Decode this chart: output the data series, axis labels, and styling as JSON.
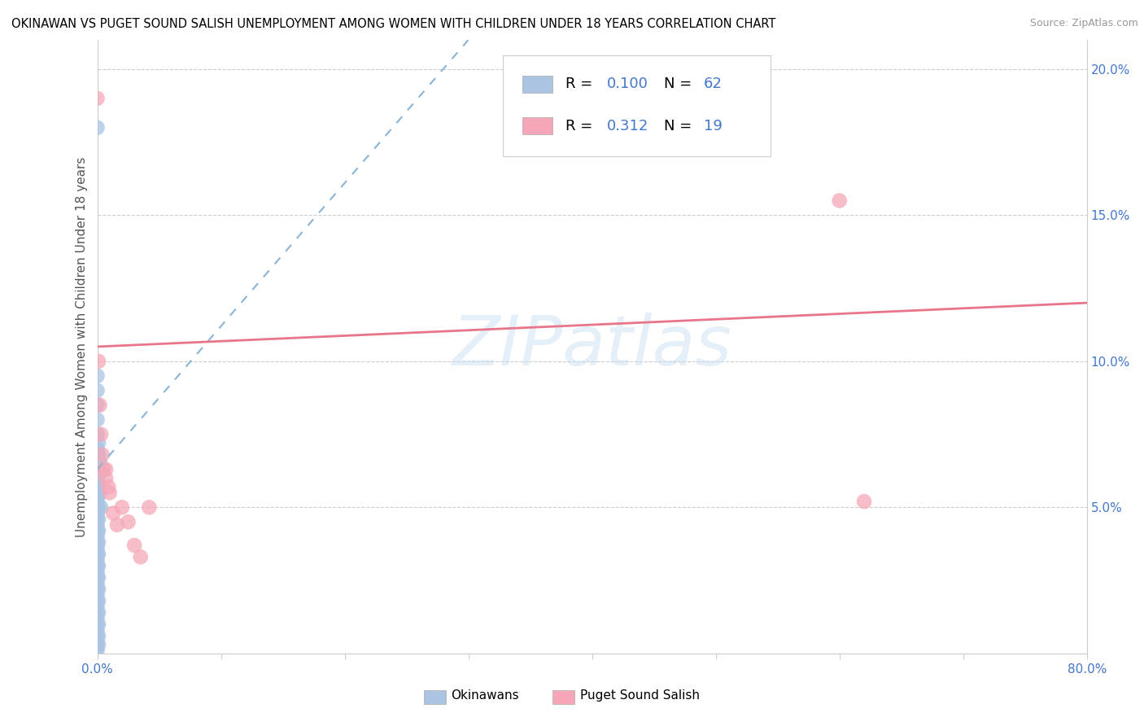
{
  "title": "OKINAWAN VS PUGET SOUND SALISH UNEMPLOYMENT AMONG WOMEN WITH CHILDREN UNDER 18 YEARS CORRELATION CHART",
  "source": "Source: ZipAtlas.com",
  "ylabel": "Unemployment Among Women with Children Under 18 years",
  "xlim": [
    0.0,
    0.8
  ],
  "ylim": [
    0.0,
    0.21
  ],
  "xticks": [
    0.0,
    0.1,
    0.2,
    0.3,
    0.4,
    0.5,
    0.6,
    0.7,
    0.8
  ],
  "xticklabels": [
    "0.0%",
    "",
    "",
    "",
    "",
    "",
    "",
    "",
    "80.0%"
  ],
  "yticks_left": [
    0.0,
    0.05,
    0.1,
    0.15,
    0.2
  ],
  "yticklabels_left": [
    "",
    "",
    "",
    "",
    ""
  ],
  "yticks_right": [
    0.05,
    0.1,
    0.15,
    0.2
  ],
  "yticklabels_right": [
    "5.0%",
    "10.0%",
    "15.0%",
    "20.0%"
  ],
  "okinawan_color": "#aac4e2",
  "puget_color": "#f5a7b8",
  "okinawan_line_color": "#88b4d8",
  "puget_line_color": "#e8758a",
  "R_okinawan": 0.1,
  "N_okinawan": 62,
  "R_puget": 0.312,
  "N_puget": 19,
  "watermark": "ZIPatlas",
  "legend_label1": "Okinawans",
  "legend_label2": "Puget Sound Salish",
  "blue_text_color": "#4477cc",
  "gray_grid_color": "#cccccc",
  "tick_label_color": "#4477cc",
  "okinawan_points": [
    [
      0.0,
      0.18
    ],
    [
      0.0,
      0.095
    ],
    [
      0.0,
      0.09
    ],
    [
      0.0,
      0.085
    ],
    [
      0.0,
      0.08
    ],
    [
      0.0,
      0.075
    ],
    [
      0.0,
      0.07
    ],
    [
      0.0,
      0.068
    ],
    [
      0.0,
      0.065
    ],
    [
      0.0,
      0.062
    ],
    [
      0.0,
      0.06
    ],
    [
      0.0,
      0.058
    ],
    [
      0.0,
      0.055
    ],
    [
      0.0,
      0.052
    ],
    [
      0.0,
      0.05
    ],
    [
      0.0,
      0.048
    ],
    [
      0.0,
      0.046
    ],
    [
      0.0,
      0.044
    ],
    [
      0.0,
      0.042
    ],
    [
      0.0,
      0.04
    ],
    [
      0.0,
      0.038
    ],
    [
      0.0,
      0.036
    ],
    [
      0.0,
      0.034
    ],
    [
      0.0,
      0.032
    ],
    [
      0.0,
      0.03
    ],
    [
      0.0,
      0.028
    ],
    [
      0.0,
      0.026
    ],
    [
      0.0,
      0.024
    ],
    [
      0.0,
      0.022
    ],
    [
      0.0,
      0.02
    ],
    [
      0.0,
      0.018
    ],
    [
      0.0,
      0.016
    ],
    [
      0.0,
      0.014
    ],
    [
      0.0,
      0.012
    ],
    [
      0.0,
      0.01
    ],
    [
      0.0,
      0.008
    ],
    [
      0.0,
      0.006
    ],
    [
      0.0,
      0.004
    ],
    [
      0.0,
      0.002
    ],
    [
      0.0,
      0.001
    ],
    [
      0.001,
      0.072
    ],
    [
      0.001,
      0.068
    ],
    [
      0.001,
      0.062
    ],
    [
      0.001,
      0.058
    ],
    [
      0.001,
      0.054
    ],
    [
      0.001,
      0.05
    ],
    [
      0.001,
      0.046
    ],
    [
      0.001,
      0.042
    ],
    [
      0.001,
      0.038
    ],
    [
      0.001,
      0.034
    ],
    [
      0.001,
      0.03
    ],
    [
      0.001,
      0.026
    ],
    [
      0.001,
      0.022
    ],
    [
      0.001,
      0.018
    ],
    [
      0.001,
      0.014
    ],
    [
      0.001,
      0.01
    ],
    [
      0.001,
      0.006
    ],
    [
      0.001,
      0.003
    ],
    [
      0.002,
      0.066
    ],
    [
      0.002,
      0.055
    ],
    [
      0.003,
      0.062
    ],
    [
      0.003,
      0.05
    ]
  ],
  "puget_points": [
    [
      0.0,
      0.19
    ],
    [
      0.001,
      0.1
    ],
    [
      0.002,
      0.085
    ],
    [
      0.003,
      0.075
    ],
    [
      0.004,
      0.068
    ],
    [
      0.005,
      0.063
    ],
    [
      0.007,
      0.06
    ],
    [
      0.009,
      0.057
    ],
    [
      0.01,
      0.055
    ],
    [
      0.013,
      0.048
    ],
    [
      0.016,
      0.044
    ],
    [
      0.02,
      0.05
    ],
    [
      0.025,
      0.045
    ],
    [
      0.03,
      0.037
    ],
    [
      0.035,
      0.033
    ],
    [
      0.042,
      0.05
    ],
    [
      0.6,
      0.155
    ],
    [
      0.62,
      0.052
    ],
    [
      0.007,
      0.063
    ]
  ],
  "puget_line_x0": 0.0,
  "puget_line_y0": 0.105,
  "puget_line_x1": 0.8,
  "puget_line_y1": 0.12,
  "ok_line_x0": 0.0,
  "ok_line_y0": 0.063,
  "ok_line_x1": 0.3,
  "ok_line_y1": 0.21
}
